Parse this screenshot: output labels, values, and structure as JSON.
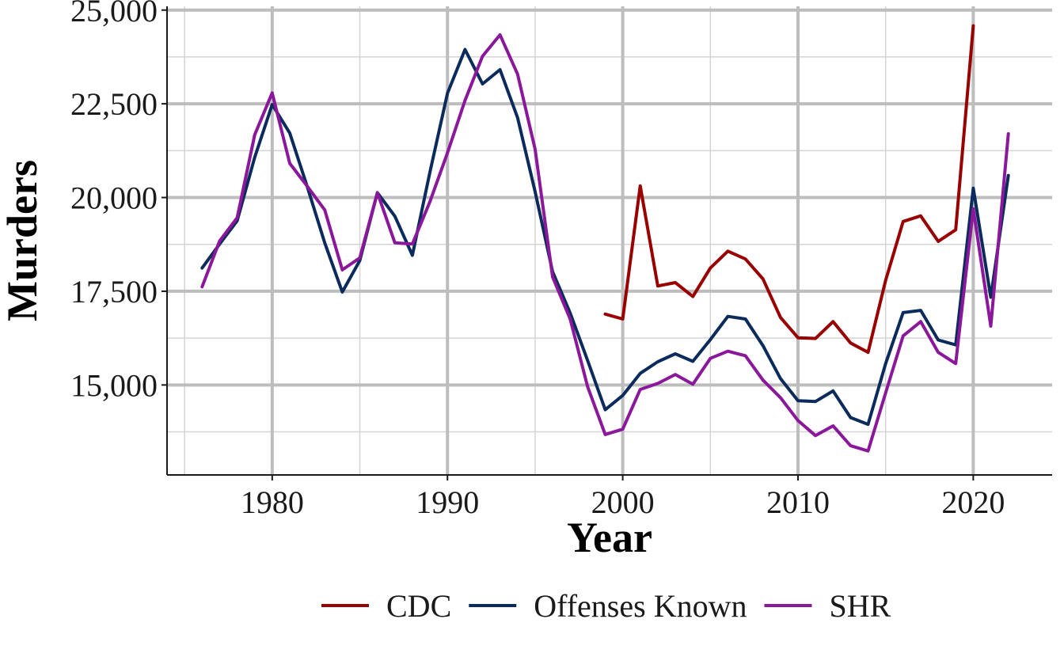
{
  "chart_data": {
    "type": "line",
    "title": "",
    "xlabel": "Year",
    "ylabel": "Murders",
    "xlim": [
      1974,
      2024.5
    ],
    "ylim": [
      12600,
      25100
    ],
    "x_major_ticks": [
      1980,
      1990,
      2000,
      2010,
      2020
    ],
    "x_minor_ticks": [
      1975,
      1985,
      1995,
      2005,
      2015
    ],
    "y_major_ticks": [
      15000,
      17500,
      20000,
      22500,
      25000
    ],
    "y_minor_ticks": [
      13750,
      16250,
      18750,
      21250,
      23750
    ],
    "x_tick_labels": [
      "1980",
      "1990",
      "2000",
      "2010",
      "2020"
    ],
    "y_tick_labels": [
      "15,000",
      "17,500",
      "20,000",
      "22,500",
      "25,000"
    ],
    "grid": true,
    "legend_position": "bottom",
    "series": [
      {
        "name": "CDC",
        "color": "#990000",
        "x": [
          1999,
          2000,
          2001,
          2002,
          2003,
          2004,
          2005,
          2006,
          2007,
          2008,
          2009,
          2010,
          2011,
          2012,
          2013,
          2014,
          2015,
          2016,
          2017,
          2018,
          2019,
          2020
        ],
        "values": [
          16890,
          16760,
          20310,
          17640,
          17730,
          17360,
          18120,
          18570,
          18360,
          17830,
          16800,
          16260,
          16240,
          16690,
          16120,
          15870,
          17790,
          19360,
          19510,
          18830,
          19140,
          24580
        ]
      },
      {
        "name": "Offenses Known",
        "color": "#0b2b5c",
        "x": [
          1976,
          1977,
          1978,
          1979,
          1980,
          1981,
          1982,
          1983,
          1984,
          1985,
          1986,
          1987,
          1988,
          1989,
          1990,
          1991,
          1992,
          1993,
          1994,
          1995,
          1996,
          1997,
          1998,
          1999,
          2000,
          2001,
          2002,
          2003,
          2004,
          2005,
          2006,
          2007,
          2008,
          2009,
          2010,
          2011,
          2012,
          2013,
          2014,
          2015,
          2016,
          2017,
          2018,
          2019,
          2020,
          2021,
          2022
        ],
        "values": [
          18120,
          18760,
          19380,
          21070,
          22480,
          21720,
          20290,
          18790,
          17480,
          18320,
          20130,
          19500,
          18460,
          20680,
          22780,
          23950,
          23030,
          23410,
          22130,
          20160,
          18020,
          16920,
          15650,
          14340,
          14720,
          15310,
          15620,
          15830,
          15630,
          16210,
          16830,
          16760,
          16050,
          15170,
          14580,
          14560,
          14840,
          14130,
          13950,
          15570,
          16930,
          16990,
          16200,
          16070,
          20250,
          17340,
          20590
        ]
      },
      {
        "name": "SHR",
        "color": "#8b179b",
        "x": [
          1976,
          1977,
          1978,
          1979,
          1980,
          1981,
          1982,
          1983,
          1984,
          1985,
          1986,
          1987,
          1988,
          1989,
          1990,
          1991,
          1992,
          1993,
          1994,
          1995,
          1996,
          1997,
          1998,
          1999,
          2000,
          2001,
          2002,
          2003,
          2004,
          2005,
          2006,
          2007,
          2008,
          2009,
          2010,
          2011,
          2012,
          2013,
          2014,
          2015,
          2016,
          2017,
          2018,
          2019,
          2020,
          2021,
          2022
        ],
        "values": [
          17620,
          18840,
          19460,
          21670,
          22790,
          20910,
          20300,
          19670,
          18070,
          18390,
          20130,
          18790,
          18760,
          19890,
          21190,
          22590,
          23770,
          24340,
          23290,
          21290,
          17880,
          16760,
          14950,
          13680,
          13820,
          14880,
          15040,
          15280,
          15020,
          15710,
          15900,
          15780,
          15130,
          14660,
          14050,
          13650,
          13910,
          13380,
          13240,
          14790,
          16310,
          16690,
          15870,
          15570,
          19700,
          16570,
          21700
        ]
      }
    ]
  }
}
